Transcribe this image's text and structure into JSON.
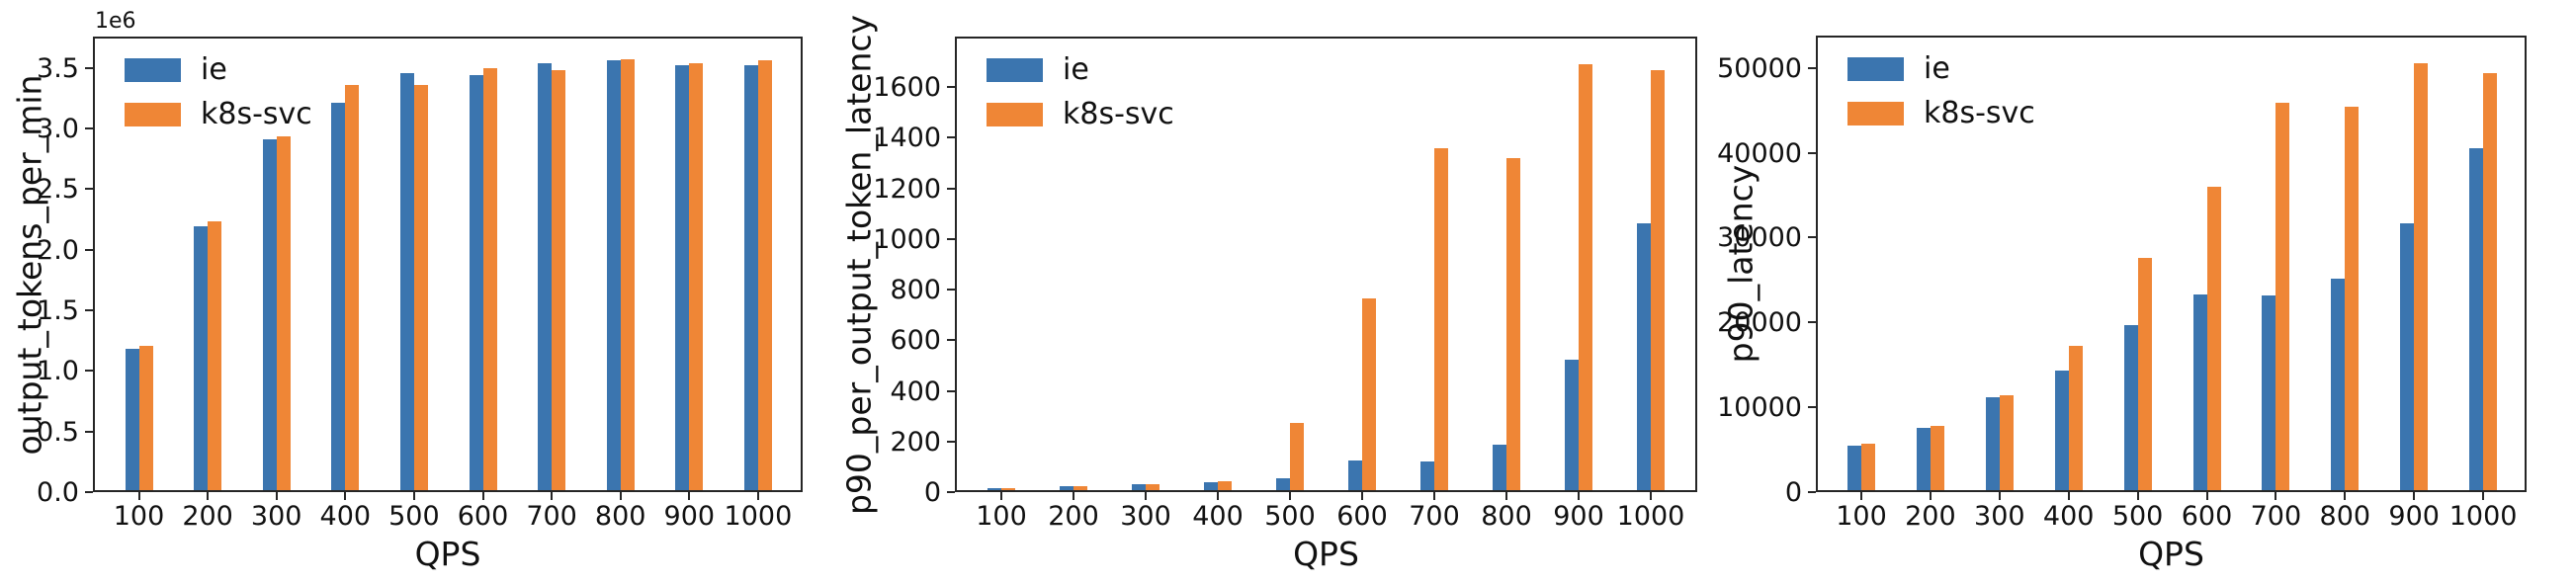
{
  "figure": {
    "background": "#ffffff",
    "spine_color": "#262626",
    "text_color": "#111111"
  },
  "colors": {
    "ie": "#3b75af",
    "k8s_svc": "#ef8636"
  },
  "legend": {
    "items": [
      "ie",
      "k8s-svc"
    ],
    "position": "upper left"
  },
  "chart_data": [
    {
      "type": "bar",
      "title": "",
      "ylabel": "output_tokens_per_min",
      "xlabel": "QPS",
      "y_offset_label": "1e6",
      "grid": false,
      "legend_position": "upper left",
      "categories": [
        "100",
        "200",
        "300",
        "400",
        "500",
        "600",
        "700",
        "800",
        "900",
        "1000"
      ],
      "series": [
        {
          "name": "ie",
          "color": "#3b75af",
          "values": [
            1170000,
            2190000,
            2910000,
            3210000,
            3460000,
            3440000,
            3540000,
            3560000,
            3520000,
            3520000
          ]
        },
        {
          "name": "k8s-svc",
          "color": "#ef8636",
          "values": [
            1200000,
            2230000,
            2930000,
            3360000,
            3360000,
            3500000,
            3480000,
            3570000,
            3540000,
            3560000
          ]
        }
      ],
      "yticks": [
        0,
        500000,
        1000000,
        1500000,
        2000000,
        2500000,
        3000000,
        3500000
      ],
      "ytick_labels": [
        "0.0",
        "0.5",
        "1.0",
        "1.5",
        "2.0",
        "2.5",
        "3.0",
        "3.5"
      ],
      "ylim": [
        0,
        3760000
      ]
    },
    {
      "type": "bar",
      "title": "",
      "ylabel": "p90_per_output_token_latency",
      "xlabel": "QPS",
      "grid": false,
      "legend_position": "upper left",
      "categories": [
        "100",
        "200",
        "300",
        "400",
        "500",
        "600",
        "700",
        "800",
        "900",
        "1000"
      ],
      "series": [
        {
          "name": "ie",
          "color": "#3b75af",
          "values": [
            9,
            17,
            23,
            32,
            46,
            118,
            112,
            182,
            517,
            1060
          ]
        },
        {
          "name": "k8s-svc",
          "color": "#ef8636",
          "values": [
            9,
            17,
            22,
            37,
            268,
            762,
            1355,
            1318,
            1690,
            1665
          ]
        }
      ],
      "yticks": [
        0,
        200,
        400,
        600,
        800,
        1000,
        1200,
        1400,
        1600
      ],
      "ytick_labels": [
        "0",
        "200",
        "400",
        "600",
        "800",
        "1000",
        "1200",
        "1400",
        "1600"
      ],
      "ylim": [
        0,
        1800
      ]
    },
    {
      "type": "bar",
      "title": "",
      "ylabel": "p90_latency",
      "xlabel": "QPS",
      "grid": false,
      "legend_position": "upper left",
      "categories": [
        "100",
        "200",
        "300",
        "400",
        "500",
        "600",
        "700",
        "800",
        "900",
        "1000"
      ],
      "series": [
        {
          "name": "ie",
          "color": "#3b75af",
          "values": [
            5300,
            7400,
            11000,
            14100,
            19500,
            23200,
            23000,
            25000,
            31600,
            40500
          ]
        },
        {
          "name": "k8s-svc",
          "color": "#ef8636",
          "values": [
            5450,
            7600,
            11250,
            17100,
            27500,
            35900,
            45800,
            45400,
            50500,
            49400
          ]
        }
      ],
      "yticks": [
        0,
        10000,
        20000,
        30000,
        40000,
        50000
      ],
      "ytick_labels": [
        "0",
        "10000",
        "20000",
        "30000",
        "40000",
        "50000"
      ],
      "ylim": [
        0,
        53800
      ]
    }
  ]
}
